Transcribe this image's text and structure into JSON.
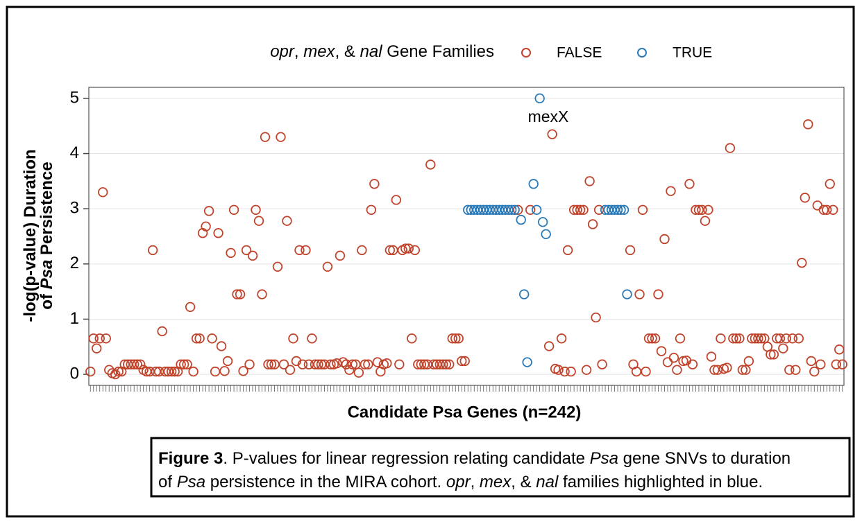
{
  "chart_data": {
    "type": "scatter",
    "legend_title": [
      {
        "text": "opr",
        "italic": true
      },
      {
        "text": ", "
      },
      {
        "text": "mex",
        "italic": true
      },
      {
        "text": ", & "
      },
      {
        "text": "nal",
        "italic": true
      },
      {
        "text": " Gene Families"
      }
    ],
    "xlabel": "Candidate Psa Genes (n=242)",
    "ylabel": [
      [
        {
          "text": "-log(p-value) Duration"
        }
      ],
      [
        {
          "text": "of "
        },
        {
          "text": "Psa",
          "italic": true
        },
        {
          "text": " Persistence"
        }
      ]
    ],
    "annotations": [
      {
        "text": "mexX"
      }
    ],
    "caption": [
      [
        {
          "text": "Figure 3",
          "bold": true
        },
        {
          "text": ". P-values for linear regression relating candidate "
        },
        {
          "text": "Psa",
          "italic": true
        },
        {
          "text": " gene SNVs to duration"
        }
      ],
      [
        {
          "text": "of "
        },
        {
          "text": "Psa",
          "italic": true
        },
        {
          "text": " persistence in the MIRA cohort. "
        },
        {
          "text": "opr",
          "italic": true
        },
        {
          "text": ", "
        },
        {
          "text": "mex",
          "italic": true
        },
        {
          "text": ", & "
        },
        {
          "text": "nal",
          "italic": true
        },
        {
          "text": " families highlighted in blue."
        }
      ]
    ],
    "categories": [
      null,
      null,
      null,
      null,
      null,
      null,
      null,
      null,
      null,
      null,
      null,
      null,
      null,
      null,
      null,
      null,
      null,
      null,
      null,
      null,
      null,
      null,
      null,
      null,
      null,
      null,
      null,
      null,
      null,
      null,
      null,
      null,
      null,
      null,
      null,
      null,
      null,
      null,
      null,
      null,
      null,
      null,
      null,
      null,
      null,
      null,
      null,
      null,
      null,
      null,
      null,
      null,
      null,
      null,
      null,
      null,
      null,
      null,
      null,
      null,
      null,
      null,
      null,
      null,
      null,
      null,
      null,
      null,
      null,
      null,
      null,
      null,
      null,
      null,
      null,
      null,
      null,
      null,
      null,
      null,
      null,
      null,
      null,
      null,
      null,
      null,
      null,
      null,
      null,
      null,
      null,
      null,
      null,
      null,
      null,
      null,
      null,
      null,
      null,
      null,
      null,
      null,
      null,
      null,
      null,
      null,
      null,
      null,
      null,
      null,
      null,
      null,
      null,
      null,
      null,
      null,
      null,
      null,
      null,
      null,
      null,
      null,
      null,
      null,
      null,
      null,
      null,
      null,
      null,
      null,
      null,
      null,
      null,
      null,
      null,
      null,
      null,
      null,
      null,
      null,
      null,
      null,
      null,
      null,
      null,
      null,
      null,
      null,
      null,
      null,
      null,
      null,
      null,
      null,
      null,
      null,
      null,
      null,
      null,
      null,
      null,
      null,
      null,
      null,
      null,
      null,
      null,
      null,
      null,
      null,
      null,
      null,
      null,
      null,
      null,
      null,
      null,
      null,
      null,
      null,
      null,
      null,
      null,
      null,
      null,
      null,
      null,
      null,
      null,
      null,
      null,
      null,
      null,
      null,
      null,
      null,
      null,
      null,
      null,
      null,
      null,
      null,
      null,
      null,
      null,
      null,
      null,
      null,
      null,
      null,
      null,
      null,
      null,
      null,
      null,
      null,
      null,
      null,
      null,
      null,
      null,
      null,
      null,
      null,
      null,
      null,
      null,
      null,
      null,
      null,
      null,
      null,
      null,
      null,
      null,
      null,
      null,
      null,
      null,
      null,
      null,
      null
    ],
    "series": [
      {
        "name": "FALSE",
        "color": "#c0432b",
        "values": [
          0.05,
          0.65,
          0.47,
          0.65,
          3.3,
          0.65,
          0.08,
          0.02,
          0.0,
          0.05,
          0.05,
          0.18,
          0.18,
          0.18,
          0.18,
          0.18,
          0.18,
          0.08,
          0.05,
          0.05,
          2.25,
          0.05,
          0.05,
          0.78,
          0.05,
          0.05,
          0.05,
          0.05,
          0.05,
          0.18,
          0.18,
          0.18,
          1.22,
          0.05,
          0.65,
          0.65,
          2.56,
          2.68,
          2.96,
          0.65,
          0.05,
          2.56,
          0.51,
          0.06,
          0.24,
          2.2,
          2.98,
          1.45,
          1.45,
          0.06,
          2.25,
          0.18,
          2.15,
          2.98,
          2.78,
          1.45,
          4.3,
          0.18,
          0.18,
          0.18,
          1.95,
          4.3,
          0.18,
          2.78,
          0.08,
          0.65,
          0.24,
          2.25,
          0.18,
          2.25,
          0.18,
          0.65,
          0.18,
          0.18,
          0.18,
          0.18,
          1.95,
          0.18,
          0.18,
          0.2,
          2.15,
          0.22,
          0.18,
          0.08,
          0.18,
          0.18,
          0.03,
          2.25,
          0.18,
          0.18,
          2.98,
          3.45,
          0.22,
          0.05,
          0.18,
          0.2,
          2.25,
          2.25,
          3.16,
          0.18,
          2.25,
          2.28,
          2.28,
          0.65,
          2.25,
          0.18,
          0.18,
          0.18,
          0.18,
          3.8,
          0.18,
          0.18,
          0.18,
          0.18,
          0.18,
          0.18,
          0.65,
          0.65,
          0.65,
          0.24,
          0.24,
          null,
          null,
          null,
          null,
          null,
          null,
          null,
          null,
          null,
          null,
          null,
          null,
          null,
          null,
          null,
          null,
          2.98,
          null,
          null,
          null,
          2.98,
          null,
          null,
          null,
          null,
          null,
          0.51,
          4.35,
          0.1,
          0.08,
          0.65,
          0.05,
          2.25,
          0.05,
          2.98,
          2.98,
          2.98,
          2.98,
          0.08,
          3.5,
          2.72,
          1.03,
          2.98,
          0.18,
          null,
          null,
          null,
          null,
          null,
          null,
          null,
          null,
          2.25,
          0.18,
          0.05,
          1.45,
          2.98,
          0.05,
          0.65,
          0.65,
          0.65,
          1.45,
          0.42,
          2.45,
          0.22,
          3.32,
          0.3,
          0.08,
          0.65,
          0.24,
          0.25,
          3.45,
          0.18,
          2.98,
          2.98,
          2.98,
          2.78,
          2.98,
          0.32,
          0.08,
          0.08,
          0.65,
          0.1,
          0.12,
          4.1,
          0.65,
          0.65,
          0.65,
          0.08,
          0.08,
          0.24,
          0.65,
          0.65,
          0.65,
          0.65,
          0.65,
          0.5,
          0.36,
          0.36,
          0.65,
          0.65,
          0.47,
          0.65,
          0.08,
          0.65,
          0.08,
          0.65,
          2.02,
          3.2,
          4.53,
          0.24,
          0.05,
          3.06,
          0.18,
          2.98,
          2.98,
          3.45,
          2.98,
          0.18,
          0.45,
          0.18
        ]
      },
      {
        "name": "TRUE",
        "color": "#2a7ab8",
        "values": [
          null,
          null,
          null,
          null,
          null,
          null,
          null,
          null,
          null,
          null,
          null,
          null,
          null,
          null,
          null,
          null,
          null,
          null,
          null,
          null,
          null,
          null,
          null,
          null,
          null,
          null,
          null,
          null,
          null,
          null,
          null,
          null,
          null,
          null,
          null,
          null,
          null,
          null,
          null,
          null,
          null,
          null,
          null,
          null,
          null,
          null,
          null,
          null,
          null,
          null,
          null,
          null,
          null,
          null,
          null,
          null,
          null,
          null,
          null,
          null,
          null,
          null,
          null,
          null,
          null,
          null,
          null,
          null,
          null,
          null,
          null,
          null,
          null,
          null,
          null,
          null,
          null,
          null,
          null,
          null,
          null,
          null,
          null,
          null,
          null,
          null,
          null,
          null,
          null,
          null,
          null,
          null,
          null,
          null,
          null,
          null,
          null,
          null,
          null,
          null,
          null,
          null,
          null,
          null,
          null,
          null,
          null,
          null,
          null,
          null,
          null,
          null,
          null,
          null,
          null,
          null,
          null,
          null,
          null,
          null,
          null,
          2.98,
          2.98,
          2.98,
          2.98,
          2.98,
          2.98,
          2.98,
          2.98,
          2.98,
          2.98,
          2.98,
          2.98,
          2.98,
          2.98,
          2.98,
          2.98,
          null,
          2.8,
          1.45,
          0.22,
          null,
          3.45,
          2.98,
          5.0,
          2.76,
          2.54,
          null,
          null,
          null,
          null,
          null,
          null,
          null,
          null,
          null,
          null,
          null,
          null,
          null,
          null,
          null,
          null,
          null,
          null,
          2.98,
          2.98,
          2.98,
          2.98,
          2.98,
          2.98,
          2.98,
          1.45,
          null,
          null,
          null,
          null,
          null,
          null,
          null,
          null,
          null,
          null,
          null,
          null,
          null,
          null,
          null,
          null,
          null,
          null,
          null,
          null,
          null,
          null,
          null,
          null,
          null,
          null,
          null,
          null,
          null,
          null,
          null,
          null,
          null,
          null,
          null,
          null,
          null,
          null,
          null,
          null,
          null,
          null,
          null,
          null,
          null,
          null,
          null,
          null,
          null,
          null,
          null,
          null,
          null,
          null,
          null,
          null,
          null,
          null,
          null,
          null,
          null,
          null,
          null,
          null,
          null,
          null,
          null,
          null,
          null
        ]
      }
    ],
    "ylim": [
      -0.2,
      5.2
    ],
    "yticks": [
      0,
      1,
      2,
      3,
      4,
      5
    ],
    "grid": true,
    "legend": "top"
  }
}
